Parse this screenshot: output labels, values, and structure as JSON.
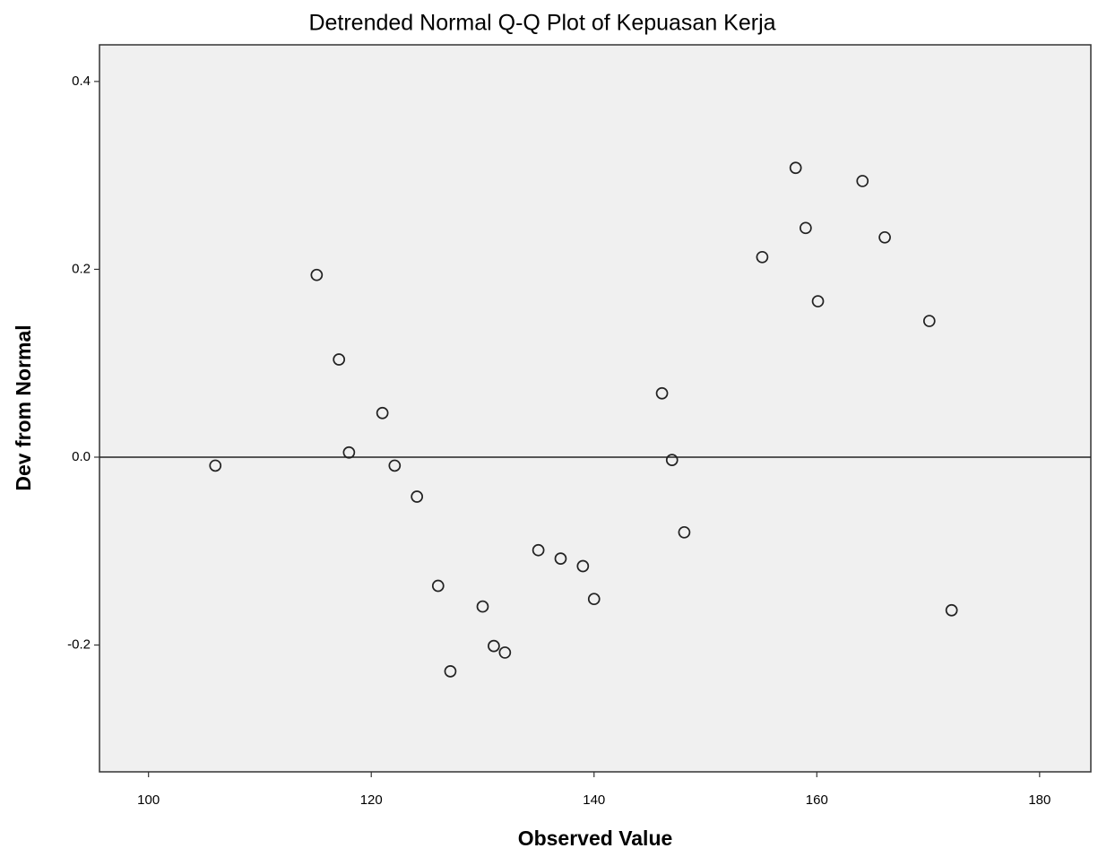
{
  "chart_data": {
    "type": "scatter",
    "title": "Detrended Normal Q-Q Plot of Kepuasan Kerja",
    "x_label": "Observed Value",
    "y_label": "Dev from Normal",
    "xlim": [
      95.6,
      184.6
    ],
    "ylim": [
      -0.335,
      0.439
    ],
    "xticks": [
      100,
      120,
      140,
      160,
      180
    ],
    "yticks": [
      {
        "value": -0.2,
        "label": "-0.2"
      },
      {
        "value": 0,
        "label": "0.0"
      },
      0.2,
      0.4
    ],
    "reference_line": 0,
    "color": "#222222",
    "x": [
      106.0,
      115.1,
      117.1,
      118.0,
      121.0,
      122.1,
      124.1,
      126.0,
      127.1,
      130.0,
      131.0,
      132.0,
      135.0,
      137.0,
      139.0,
      140.0,
      146.1,
      147.0,
      148.1,
      155.1,
      158.1,
      159.0,
      160.1,
      164.1,
      166.1,
      170.1,
      172.1
    ],
    "values": [
      -0.009,
      0.194,
      0.104,
      0.005,
      0.047,
      -0.009,
      -0.042,
      -0.137,
      -0.228,
      -0.159,
      -0.201,
      -0.208,
      -0.099,
      -0.108,
      -0.116,
      -0.151,
      0.068,
      -0.003,
      -0.08,
      0.213,
      0.308,
      0.244,
      0.166,
      0.294,
      0.234,
      0.145,
      -0.163
    ]
  }
}
